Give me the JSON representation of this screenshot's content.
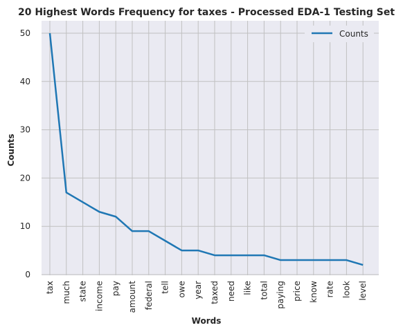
{
  "chart_data": {
    "type": "line",
    "title": "20 Highest Words Frequency for taxes - Processed EDA-1 Testing Set",
    "xlabel": "Words",
    "ylabel": "Counts",
    "categories": [
      "tax",
      "much",
      "state",
      "income",
      "pay",
      "amount",
      "federal",
      "tell",
      "owe",
      "year",
      "taxed",
      "need",
      "like",
      "total",
      "paying",
      "price",
      "know",
      "rate",
      "look",
      "level"
    ],
    "series": [
      {
        "name": "Counts",
        "values": [
          50,
          17,
          15,
          13,
          12,
          9,
          9,
          7,
          5,
          5,
          4,
          4,
          4,
          4,
          3,
          3,
          3,
          3,
          3,
          2
        ]
      }
    ],
    "ylim": [
      0,
      50
    ],
    "yticks": [
      0,
      10,
      20,
      30,
      40,
      50
    ],
    "grid": true,
    "legend_position": "top-right",
    "colors": {
      "line": "#1f77b4",
      "plot_bg": "#eaeaf2",
      "grid": "#c0c0c0"
    }
  }
}
